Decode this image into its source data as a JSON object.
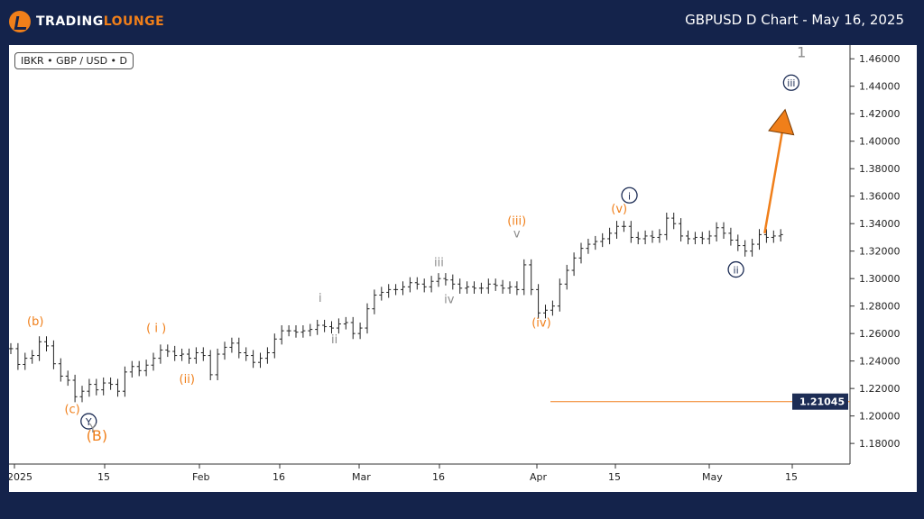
{
  "header": {
    "logo_text_main": "TRADING",
    "logo_text_accent": "LOUNGE",
    "chart_title": "GBPUSD D Chart - May 16, 2025"
  },
  "badge": "IBKR • GBP / USD • D",
  "colors": {
    "orange": "#f07f1a",
    "navy": "#1d2d55",
    "gray": "#8c8c8c",
    "price_box": "#1d2d55"
  },
  "chart_data": {
    "type": "bar",
    "title": "GBPUSD D Chart - May 16, 2025",
    "ylim": [
      1.165,
      1.47
    ],
    "y_ticks": [
      "1.46000",
      "1.44000",
      "1.42000",
      "1.40000",
      "1.38000",
      "1.36000",
      "1.34000",
      "1.32000",
      "1.30000",
      "1.28000",
      "1.26000",
      "1.24000",
      "1.22000",
      "1.20000",
      "1.18000"
    ],
    "x_ticks": [
      "2025",
      "15",
      "Feb",
      "16",
      "Mar",
      "16",
      "Apr",
      "15",
      "May",
      "15"
    ],
    "ohlc_close_series": [
      1.249,
      1.2375,
      1.242,
      1.244,
      1.254,
      1.251,
      1.238,
      1.229,
      1.226,
      1.214,
      1.218,
      1.223,
      1.219,
      1.224,
      1.223,
      1.218,
      1.232,
      1.236,
      1.233,
      1.237,
      1.242,
      1.248,
      1.247,
      1.244,
      1.245,
      1.242,
      1.246,
      1.244,
      1.23,
      1.245,
      1.25,
      1.253,
      1.246,
      1.244,
      1.239,
      1.242,
      1.246,
      1.256,
      1.262,
      1.262,
      1.261,
      1.262,
      1.263,
      1.266,
      1.265,
      1.264,
      1.267,
      1.268,
      1.26,
      1.264,
      1.278,
      1.288,
      1.29,
      1.292,
      1.292,
      1.294,
      1.297,
      1.296,
      1.294,
      1.298,
      1.3,
      1.299,
      1.296,
      1.293,
      1.294,
      1.293,
      1.293,
      1.296,
      1.295,
      1.293,
      1.294,
      1.292,
      1.31,
      1.292,
      1.275,
      1.277,
      1.28,
      1.296,
      1.306,
      1.315,
      1.322,
      1.325,
      1.327,
      1.329,
      1.333,
      1.338,
      1.338,
      1.33,
      1.329,
      1.331,
      1.33,
      1.332,
      1.344,
      1.34,
      1.331,
      1.329,
      1.33,
      1.329,
      1.331,
      1.337,
      1.333,
      1.328,
      1.324,
      1.32,
      1.325,
      1.332,
      1.33,
      1.331,
      1.332
    ],
    "price_level": {
      "label": "1.21045",
      "value": 1.21045
    },
    "labels": [
      {
        "text": "(b)",
        "color": "orange",
        "x": 12,
        "y": 1.266
      },
      {
        "text": "(c)",
        "color": "orange",
        "x": 30,
        "y": 1.202
      },
      {
        "text": "(B)",
        "color": "orange",
        "x": 42,
        "y": 1.182,
        "size": 16
      },
      {
        "text": "Y",
        "color": "navy",
        "x": 38,
        "y": 1.1935,
        "circle": true
      },
      {
        "text": "Y",
        "color": "gray",
        "x": 40,
        "y": 1.188
      },
      {
        "text": "( i )",
        "color": "orange",
        "x": 71,
        "y": 1.261
      },
      {
        "text": "(ii)",
        "color": "orange",
        "x": 86,
        "y": 1.224
      },
      {
        "text": "i",
        "color": "gray",
        "x": 151,
        "y": 1.283
      },
      {
        "text": "ii",
        "color": "gray",
        "x": 158,
        "y": 1.253
      },
      {
        "text": "iii",
        "color": "gray",
        "x": 209,
        "y": 1.309
      },
      {
        "text": "iv",
        "color": "gray",
        "x": 214,
        "y": 1.282
      },
      {
        "text": "(iii)",
        "color": "orange",
        "x": 247,
        "y": 1.339
      },
      {
        "text": "v",
        "color": "gray",
        "x": 247,
        "y": 1.33
      },
      {
        "text": "(iv)",
        "color": "orange",
        "x": 259,
        "y": 1.265
      },
      {
        "text": "(v)",
        "color": "orange",
        "x": 297,
        "y": 1.348
      },
      {
        "text": "i",
        "color": "navy",
        "x": 302,
        "y": 1.358,
        "circle": true
      },
      {
        "text": "ii",
        "color": "navy",
        "x": 354,
        "y": 1.304,
        "circle": true
      },
      {
        "text": "iii",
        "color": "navy",
        "x": 381,
        "y": 1.44,
        "circle": true
      },
      {
        "text": "1",
        "color": "gray",
        "x": 386,
        "y": 1.461,
        "size": 16
      }
    ],
    "arrow": {
      "from_x": 368,
      "from_y": 1.333,
      "to_x": 378,
      "to_y": 1.423
    }
  }
}
